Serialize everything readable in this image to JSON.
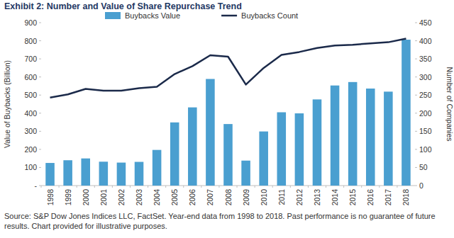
{
  "chart_data": {
    "type": "bar",
    "title": "Exhibit 2: Number and Value of Share Repurchase Trend",
    "y_label": "Value of Buybacks (Billion)",
    "y2_label": "Number of Companies",
    "source": "Source: S&P Dow Jones Indices LLC, FactSet. Year-end data from 1998 to 2018. Past performance is no guarantee of future results. Chart provided for illustrative purposes.",
    "categories": [
      "1998",
      "1999",
      "2000",
      "2001",
      "2002",
      "2003",
      "2004",
      "2005",
      "2006",
      "2007",
      "2008",
      "2009",
      "2010",
      "2011",
      "2012",
      "2013",
      "2014",
      "2015",
      "2016",
      "2017",
      "2018"
    ],
    "series": [
      {
        "name": "Buybacks Value",
        "type": "bar",
        "color": "#4a9fd0",
        "values": [
          125,
          140,
          150,
          132,
          127,
          131,
          197,
          349,
          432,
          589,
          340,
          138,
          299,
          405,
          399,
          476,
          553,
          572,
          536,
          519,
          806
        ]
      },
      {
        "name": "Buybacks Count",
        "type": "line",
        "color": "#1b2a4a",
        "axis": "y2",
        "values": [
          243,
          252,
          267,
          262,
          262,
          269,
          273,
          308,
          330,
          360,
          356,
          279,
          325,
          361,
          369,
          380,
          387,
          389,
          393,
          396,
          406
        ]
      }
    ],
    "ylim": [
      0,
      900
    ],
    "yticks": [
      {
        "value": 0,
        "label": "-"
      },
      100,
      200,
      300,
      400,
      500,
      600,
      700,
      800,
      900
    ],
    "y2lim": [
      0,
      450
    ],
    "y2ticks": [
      0,
      50,
      100,
      150,
      200,
      250,
      300,
      350,
      400,
      450
    ],
    "grid": false,
    "legend": "top"
  }
}
